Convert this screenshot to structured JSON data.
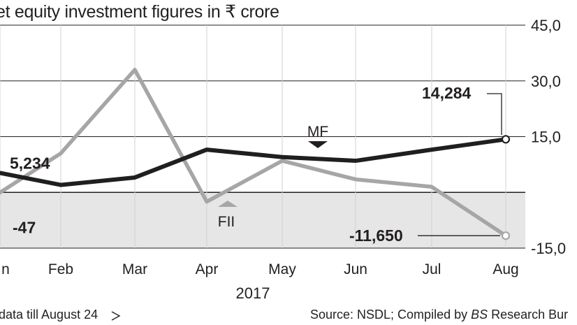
{
  "chart_data": {
    "type": "line",
    "title": "et equity investment figures in ₹ crore",
    "categories": [
      "n",
      "Feb",
      "Mar",
      "Apr",
      "May",
      "Jun",
      "Jul",
      "Aug"
    ],
    "x_group_label": "2017",
    "ylim": [
      -15000,
      45000
    ],
    "yticks": [
      {
        "value": 45000,
        "label": "45,0"
      },
      {
        "value": 30000,
        "label": "30,0"
      },
      {
        "value": 15000,
        "label": "15,0"
      },
      {
        "value": -15000,
        "label": "-15,0"
      }
    ],
    "series": [
      {
        "name": "MF",
        "color": "#1f1f1f",
        "values": [
          5234,
          2000,
          4000,
          11500,
          9500,
          8500,
          11500,
          14284
        ]
      },
      {
        "name": "FII",
        "color": "#a6a6a6",
        "values": [
          -47,
          10500,
          33000,
          -2500,
          8500,
          3500,
          1500,
          -11650
        ]
      }
    ],
    "data_labels": [
      {
        "series": "MF",
        "index": 0,
        "text": "5,234"
      },
      {
        "series": "FII",
        "index": 0,
        "text": "-47"
      },
      {
        "series": "MF",
        "index": 7,
        "text": "14,284"
      },
      {
        "series": "FII",
        "index": 7,
        "text": "-11,650"
      }
    ],
    "grid": true,
    "negative_region_shaded": true
  },
  "footer": {
    "left": "data till August 24",
    "source_prefix": "Source: NSDL; Compiled by ",
    "source_italic": "BS",
    "source_suffix": " Research Bur"
  }
}
